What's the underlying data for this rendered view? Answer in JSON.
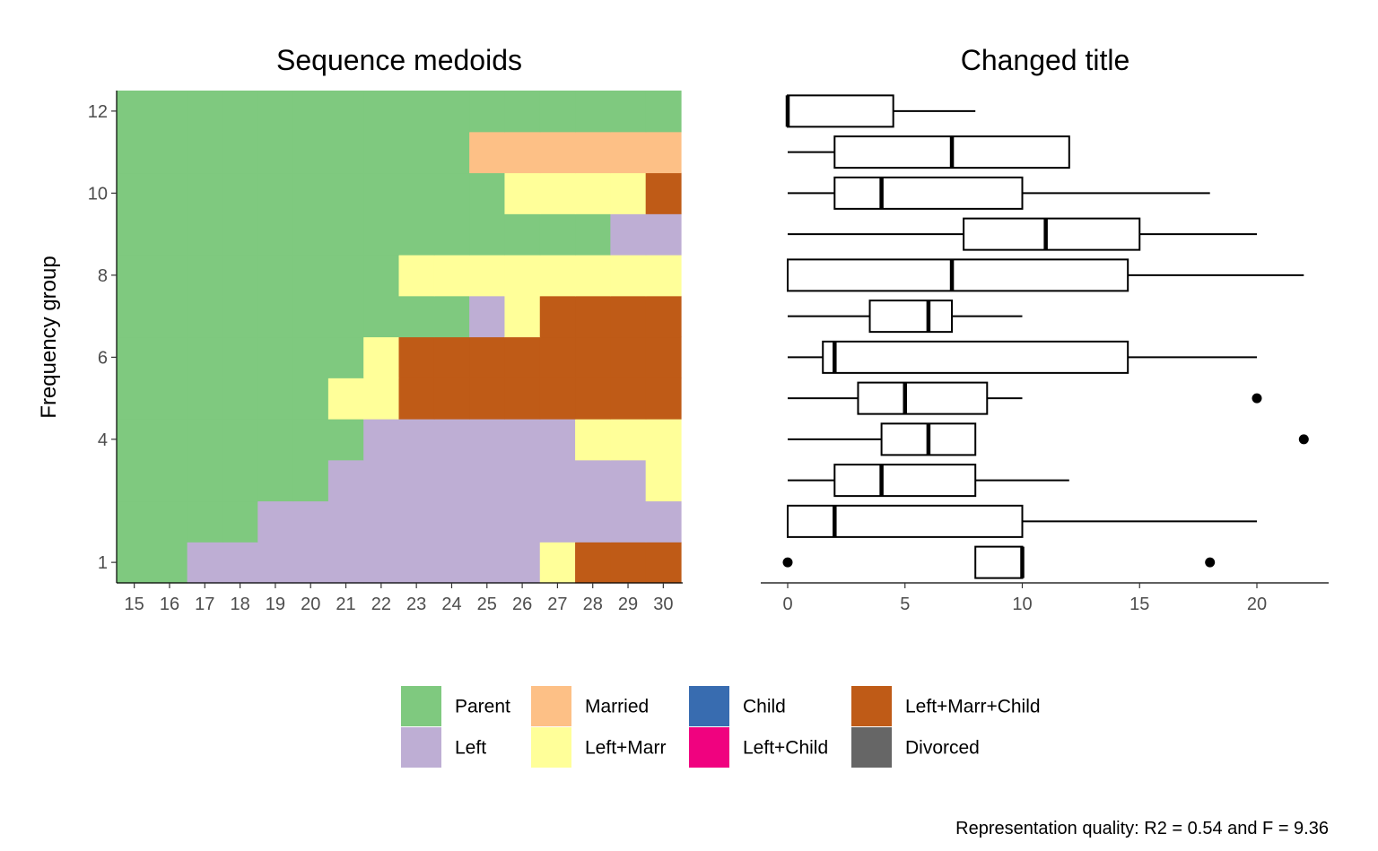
{
  "chart_data": [
    {
      "type": "heatmap",
      "title": "Sequence medoids",
      "xlabel": "",
      "ylabel": "Frequency group",
      "x": [
        "15",
        "16",
        "17",
        "18",
        "19",
        "20",
        "21",
        "22",
        "23",
        "24",
        "25",
        "26",
        "27",
        "28",
        "29",
        "30"
      ],
      "y_ticks": [
        1,
        4,
        6,
        8,
        10,
        12
      ],
      "ylim": [
        1,
        12
      ],
      "states": [
        "Parent",
        "Left",
        "Married",
        "Left+Marr",
        "Child",
        "Left+Child",
        "Left+Marr+Child",
        "Divorced"
      ],
      "rows": [
        {
          "group": 1,
          "sequence": [
            "Parent",
            "Parent",
            "Left",
            "Left",
            "Left",
            "Left",
            "Left",
            "Left",
            "Left",
            "Left",
            "Left",
            "Left",
            "Left+Marr",
            "Left+Marr+Child",
            "Left+Marr+Child",
            "Left+Marr+Child"
          ]
        },
        {
          "group": 2,
          "sequence": [
            "Parent",
            "Parent",
            "Parent",
            "Parent",
            "Left",
            "Left",
            "Left",
            "Left",
            "Left",
            "Left",
            "Left",
            "Left",
            "Left",
            "Left",
            "Left",
            "Left"
          ]
        },
        {
          "group": 3,
          "sequence": [
            "Parent",
            "Parent",
            "Parent",
            "Parent",
            "Parent",
            "Parent",
            "Left",
            "Left",
            "Left",
            "Left",
            "Left",
            "Left",
            "Left",
            "Left",
            "Left",
            "Left+Marr"
          ]
        },
        {
          "group": 4,
          "sequence": [
            "Parent",
            "Parent",
            "Parent",
            "Parent",
            "Parent",
            "Parent",
            "Parent",
            "Left",
            "Left",
            "Left",
            "Left",
            "Left",
            "Left",
            "Left+Marr",
            "Left+Marr",
            "Left+Marr"
          ]
        },
        {
          "group": 5,
          "sequence": [
            "Parent",
            "Parent",
            "Parent",
            "Parent",
            "Parent",
            "Parent",
            "Left+Marr",
            "Left+Marr",
            "Left+Marr+Child",
            "Left+Marr+Child",
            "Left+Marr+Child",
            "Left+Marr+Child",
            "Left+Marr+Child",
            "Left+Marr+Child",
            "Left+Marr+Child",
            "Left+Marr+Child"
          ]
        },
        {
          "group": 6,
          "sequence": [
            "Parent",
            "Parent",
            "Parent",
            "Parent",
            "Parent",
            "Parent",
            "Parent",
            "Left+Marr",
            "Left+Marr+Child",
            "Left+Marr+Child",
            "Left+Marr+Child",
            "Left+Marr+Child",
            "Left+Marr+Child",
            "Left+Marr+Child",
            "Left+Marr+Child",
            "Left+Marr+Child"
          ]
        },
        {
          "group": 7,
          "sequence": [
            "Parent",
            "Parent",
            "Parent",
            "Parent",
            "Parent",
            "Parent",
            "Parent",
            "Parent",
            "Parent",
            "Parent",
            "Left",
            "Left+Marr",
            "Left+Marr+Child",
            "Left+Marr+Child",
            "Left+Marr+Child",
            "Left+Marr+Child"
          ]
        },
        {
          "group": 8,
          "sequence": [
            "Parent",
            "Parent",
            "Parent",
            "Parent",
            "Parent",
            "Parent",
            "Parent",
            "Parent",
            "Left+Marr",
            "Left+Marr",
            "Left+Marr",
            "Left+Marr",
            "Left+Marr",
            "Left+Marr",
            "Left+Marr",
            "Left+Marr"
          ]
        },
        {
          "group": 9,
          "sequence": [
            "Parent",
            "Parent",
            "Parent",
            "Parent",
            "Parent",
            "Parent",
            "Parent",
            "Parent",
            "Parent",
            "Parent",
            "Parent",
            "Parent",
            "Parent",
            "Parent",
            "Left",
            "Left"
          ]
        },
        {
          "group": 10,
          "sequence": [
            "Parent",
            "Parent",
            "Parent",
            "Parent",
            "Parent",
            "Parent",
            "Parent",
            "Parent",
            "Parent",
            "Parent",
            "Parent",
            "Left+Marr",
            "Left+Marr",
            "Left+Marr",
            "Left+Marr",
            "Left+Marr+Child"
          ]
        },
        {
          "group": 11,
          "sequence": [
            "Parent",
            "Parent",
            "Parent",
            "Parent",
            "Parent",
            "Parent",
            "Parent",
            "Parent",
            "Parent",
            "Parent",
            "Married",
            "Married",
            "Married",
            "Married",
            "Married",
            "Married"
          ]
        },
        {
          "group": 12,
          "sequence": [
            "Parent",
            "Parent",
            "Parent",
            "Parent",
            "Parent",
            "Parent",
            "Parent",
            "Parent",
            "Parent",
            "Parent",
            "Parent",
            "Parent",
            "Parent",
            "Parent",
            "Parent",
            "Parent"
          ]
        }
      ]
    },
    {
      "type": "boxplot",
      "title": "Changed title",
      "xlabel": "",
      "ylabel": "",
      "x_ticks": [
        0,
        5,
        10,
        15,
        20
      ],
      "xlim": [
        0,
        22
      ],
      "boxes": [
        {
          "group": 1,
          "whisker_low": 8,
          "q1": 8,
          "median": 10,
          "q3": 10,
          "whisker_high": 10,
          "outliers": [
            0,
            18
          ]
        },
        {
          "group": 2,
          "whisker_low": 0,
          "q1": 0,
          "median": 2,
          "q3": 10,
          "whisker_high": 20,
          "outliers": []
        },
        {
          "group": 3,
          "whisker_low": 0,
          "q1": 2,
          "median": 4,
          "q3": 8,
          "whisker_high": 12,
          "outliers": []
        },
        {
          "group": 4,
          "whisker_low": 0,
          "q1": 4,
          "median": 6,
          "q3": 8,
          "whisker_high": 8,
          "outliers": [
            22
          ]
        },
        {
          "group": 5,
          "whisker_low": 0,
          "q1": 3,
          "median": 5,
          "q3": 8.5,
          "whisker_high": 10,
          "outliers": [
            20
          ]
        },
        {
          "group": 6,
          "whisker_low": 0,
          "q1": 1.5,
          "median": 2,
          "q3": 14.5,
          "whisker_high": 20,
          "outliers": []
        },
        {
          "group": 7,
          "whisker_low": 0,
          "q1": 3.5,
          "median": 6,
          "q3": 7,
          "whisker_high": 10,
          "outliers": []
        },
        {
          "group": 8,
          "whisker_low": 0,
          "q1": 0,
          "median": 7,
          "q3": 14.5,
          "whisker_high": 22,
          "outliers": []
        },
        {
          "group": 9,
          "whisker_low": 0,
          "q1": 7.5,
          "median": 11,
          "q3": 15,
          "whisker_high": 20,
          "outliers": []
        },
        {
          "group": 10,
          "whisker_low": 0,
          "q1": 2,
          "median": 4,
          "q3": 10,
          "whisker_high": 18,
          "outliers": []
        },
        {
          "group": 11,
          "whisker_low": 0,
          "q1": 2,
          "median": 7,
          "q3": 12,
          "whisker_high": 12,
          "outliers": []
        },
        {
          "group": 12,
          "whisker_low": 0,
          "q1": 0,
          "median": 0,
          "q3": 4.5,
          "whisker_high": 8,
          "outliers": []
        }
      ]
    }
  ],
  "legend": {
    "items": [
      {
        "label": "Parent",
        "color": "#7fc97f"
      },
      {
        "label": "Left",
        "color": "#beaed4"
      },
      {
        "label": "Married",
        "color": "#fdc086"
      },
      {
        "label": "Left+Marr",
        "color": "#ffff99"
      },
      {
        "label": "Child",
        "color": "#386cb0"
      },
      {
        "label": "Left+Child",
        "color": "#f0027f"
      },
      {
        "label": "Left+Marr+Child",
        "color": "#bf5b17"
      },
      {
        "label": "Divorced",
        "color": "#666666"
      }
    ]
  },
  "caption": "Representation quality: R2 = 0.54 and F = 9.36"
}
